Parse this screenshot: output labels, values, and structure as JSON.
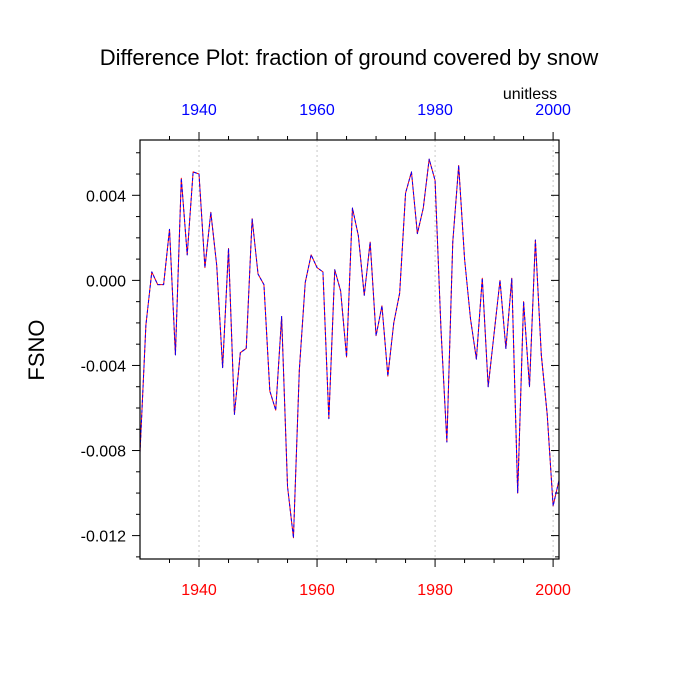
{
  "chart_data": {
    "type": "line",
    "title": "Difference Plot: fraction of ground covered by snow",
    "units_label": "unitless",
    "ylabel": "FSNO",
    "xlabel": "",
    "xlim": [
      1930,
      2001
    ],
    "ylim": [
      -0.0131,
      0.0066
    ],
    "x_ticks": [
      1940,
      1960,
      1980,
      2000
    ],
    "y_ticks": [
      0.004,
      0.0,
      -0.004,
      -0.008,
      -0.012
    ],
    "y_tick_labels": [
      "0.004",
      "0.000",
      "-0.004",
      "-0.008",
      "-0.012"
    ],
    "top_tick_labels": [
      "1940",
      "1960",
      "1980",
      "2000"
    ],
    "bottom_tick_labels": [
      "1940",
      "1960",
      "1980",
      "2000"
    ],
    "grid": "vertical dashed at major x ticks",
    "colors": {
      "top_axis_labels": "#0000ff",
      "bottom_axis_labels": "#ff0000",
      "series_a": "#ff0000",
      "series_b": "#0000ff",
      "grid": "#bbbbbb"
    },
    "series": [
      {
        "name": "difference",
        "x": [
          1930,
          1931,
          1932,
          1933,
          1934,
          1935,
          1936,
          1937,
          1938,
          1939,
          1940,
          1941,
          1942,
          1943,
          1944,
          1945,
          1946,
          1947,
          1948,
          1949,
          1950,
          1951,
          1952,
          1953,
          1954,
          1955,
          1956,
          1957,
          1958,
          1959,
          1960,
          1961,
          1962,
          1963,
          1964,
          1965,
          1966,
          1967,
          1968,
          1969,
          1970,
          1971,
          1972,
          1973,
          1974,
          1975,
          1976,
          1977,
          1978,
          1979,
          1980,
          1981,
          1982,
          1983,
          1984,
          1985,
          1986,
          1987,
          1988,
          1989,
          1990,
          1991,
          1992,
          1993,
          1994,
          1995,
          1996,
          1997,
          1998,
          1999,
          2000,
          2001
        ],
        "values": [
          -0.0081,
          -0.0021,
          0.0004,
          -0.0002,
          -0.0002,
          0.0024,
          -0.0035,
          0.0048,
          0.0012,
          0.0051,
          0.005,
          0.0006,
          0.0032,
          0.0007,
          -0.0041,
          0.0015,
          -0.0063,
          -0.0034,
          -0.0032,
          0.0029,
          0.0003,
          -0.0002,
          -0.0052,
          -0.0061,
          -0.0017,
          -0.0097,
          -0.0121,
          -0.0042,
          -0.0001,
          0.0012,
          0.0006,
          0.0004,
          -0.0065,
          0.0005,
          -0.0005,
          -0.0036,
          0.0034,
          0.0021,
          -0.0007,
          0.0018,
          -0.0026,
          -0.0012,
          -0.0045,
          -0.002,
          -0.0006,
          0.0041,
          0.0051,
          0.0022,
          0.0034,
          0.0057,
          0.0047,
          -0.0023,
          -0.0076,
          0.0018,
          0.0054,
          0.001,
          -0.0018,
          -0.0037,
          0.0001,
          -0.005,
          -0.0025,
          0.0,
          -0.0032,
          0.0001,
          -0.01,
          -0.001,
          -0.005,
          0.0019,
          -0.0035,
          -0.0063,
          -0.0106,
          -0.0094
        ]
      }
    ]
  }
}
